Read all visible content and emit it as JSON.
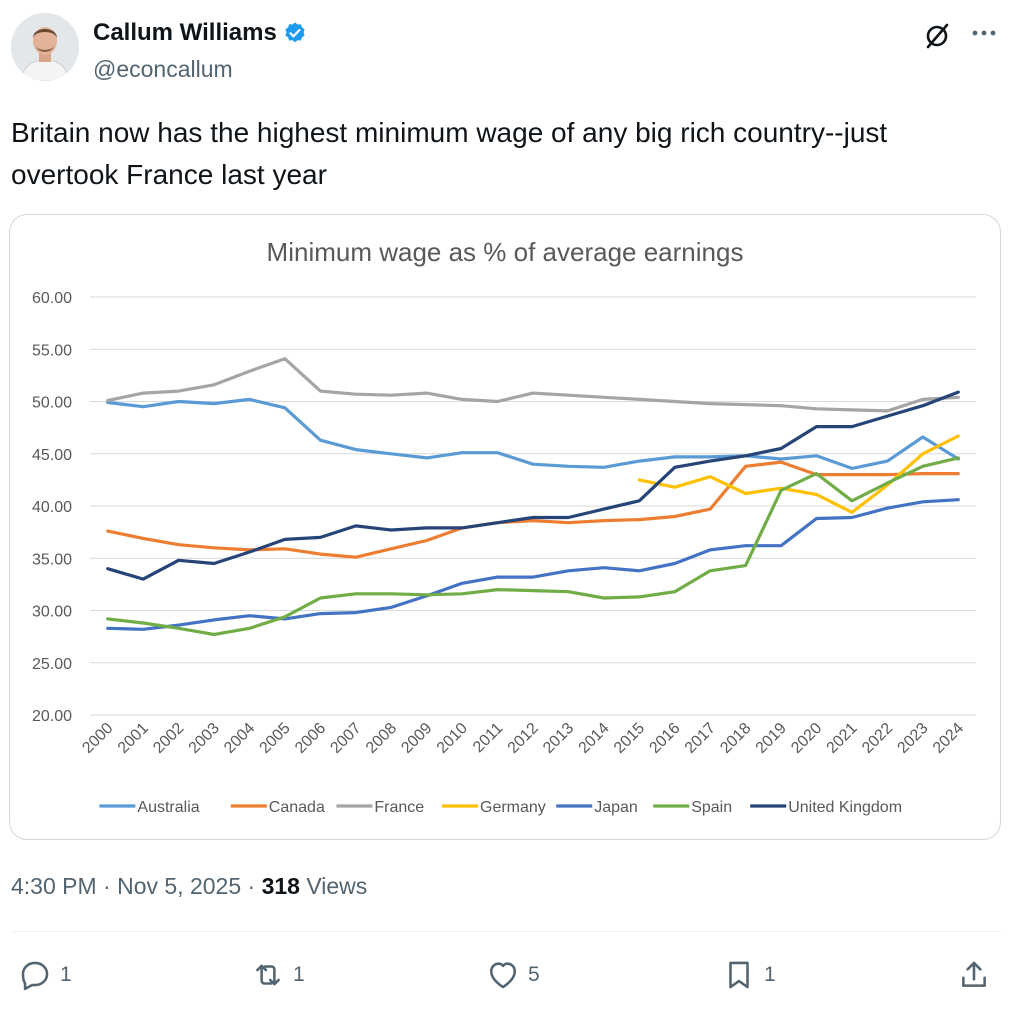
{
  "tweet": {
    "author_name": "Callum Williams",
    "author_handle": "@econcallum",
    "verified": true,
    "text": "Britain now has the highest minimum wage of any big rich country--just overtook France last year",
    "timestamp": "4:30 PM · Nov 5, 2025 · ",
    "views_count": "318",
    "views_label": " Views",
    "actions": {
      "reply_count": "1",
      "retweet_count": "1",
      "like_count": "5",
      "bookmark_count": "1"
    }
  },
  "icons": {
    "verified": "verified-badge-icon",
    "grok": "grok-icon",
    "more": "more-icon",
    "reply": "reply-icon",
    "retweet": "retweet-icon",
    "like": "like-icon",
    "bookmark": "bookmark-icon",
    "share": "share-icon"
  },
  "colors": {
    "verified": "#1d9bf0",
    "muted": "#536471"
  },
  "chart_data": {
    "type": "line",
    "title": "Minimum wage as % of average earnings",
    "xlabel": "",
    "ylabel": "",
    "ylim": [
      20,
      60
    ],
    "yticks": [
      "60.00",
      "55.00",
      "50.00",
      "45.00",
      "40.00",
      "35.00",
      "30.00",
      "25.00",
      "20.00"
    ],
    "categories": [
      "2000",
      "2001",
      "2002",
      "2003",
      "2004",
      "2005",
      "2006",
      "2007",
      "2008",
      "2009",
      "2010",
      "2011",
      "2012",
      "2013",
      "2014",
      "2015",
      "2016",
      "2017",
      "2018",
      "2019",
      "2020",
      "2021",
      "2022",
      "2023",
      "2024"
    ],
    "grid": true,
    "legend_position": "bottom",
    "series": [
      {
        "name": "Australia",
        "color": "#5b9bd5",
        "values": [
          49.9,
          49.5,
          50.0,
          49.8,
          50.2,
          49.4,
          46.3,
          45.4,
          45.0,
          44.6,
          45.1,
          45.1,
          44.0,
          43.8,
          43.7,
          44.3,
          44.7,
          44.7,
          44.8,
          44.5,
          44.8,
          43.6,
          44.3,
          46.6,
          44.5
        ]
      },
      {
        "name": "Canada",
        "color": "#ed7d31",
        "values": [
          37.6,
          36.9,
          36.3,
          36.0,
          35.8,
          35.9,
          35.4,
          35.1,
          35.9,
          36.7,
          37.9,
          38.4,
          38.6,
          38.4,
          38.6,
          38.7,
          39.0,
          39.7,
          43.8,
          44.2,
          43.0,
          43.0,
          43.0,
          43.1,
          43.1
        ]
      },
      {
        "name": "France",
        "color": "#a5a5a5",
        "values": [
          50.1,
          50.8,
          51.0,
          51.6,
          52.9,
          54.1,
          51.0,
          50.7,
          50.6,
          50.8,
          50.2,
          50.0,
          50.8,
          50.6,
          50.4,
          50.2,
          50.0,
          49.8,
          49.7,
          49.6,
          49.3,
          49.2,
          49.1,
          50.2,
          50.4
        ]
      },
      {
        "name": "Germany",
        "color": "#ffc000",
        "values": [
          null,
          null,
          null,
          null,
          null,
          null,
          null,
          null,
          null,
          null,
          null,
          null,
          null,
          null,
          null,
          42.5,
          41.8,
          42.8,
          41.2,
          41.7,
          41.1,
          39.4,
          42.0,
          45.0,
          46.7
        ]
      },
      {
        "name": "Japan",
        "color": "#4472c4",
        "values": [
          28.3,
          28.2,
          28.6,
          29.1,
          29.5,
          29.2,
          29.7,
          29.8,
          30.3,
          31.4,
          32.6,
          33.2,
          33.2,
          33.8,
          34.1,
          33.8,
          34.5,
          35.8,
          36.2,
          36.2,
          38.8,
          38.9,
          39.8,
          40.4,
          40.6
        ]
      },
      {
        "name": "Spain",
        "color": "#70ad47",
        "values": [
          29.2,
          28.8,
          28.3,
          27.7,
          28.3,
          29.4,
          31.2,
          31.6,
          31.6,
          31.5,
          31.6,
          32.0,
          31.9,
          31.8,
          31.2,
          31.3,
          31.8,
          33.8,
          34.3,
          41.5,
          43.1,
          40.5,
          42.2,
          43.8,
          44.6
        ]
      },
      {
        "name": "United Kingdom",
        "color": "#264478",
        "values": [
          34.0,
          33.0,
          34.8,
          34.5,
          35.6,
          36.8,
          37.0,
          38.1,
          37.7,
          37.9,
          37.9,
          38.4,
          38.9,
          38.9,
          39.7,
          40.5,
          43.7,
          44.3,
          44.8,
          45.5,
          47.6,
          47.6,
          48.6,
          49.6,
          50.9
        ]
      }
    ]
  }
}
